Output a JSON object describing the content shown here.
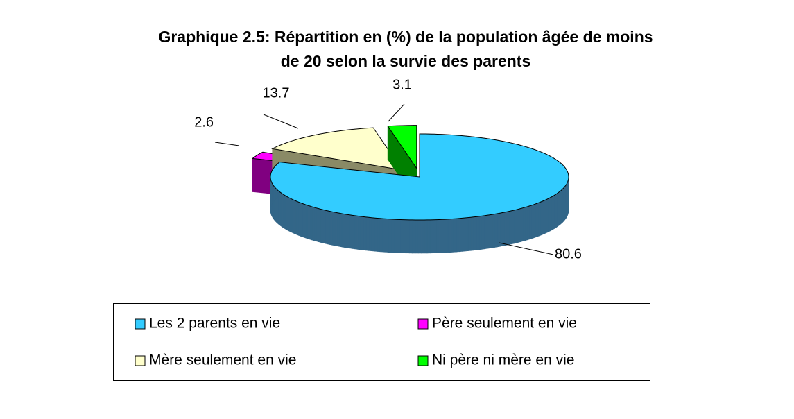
{
  "chart_data": {
    "type": "pie3d",
    "title": [
      "Graphique 2.5: Répartition en (%) de la population âgée de moins",
      "de 20 selon la survie des parents"
    ],
    "categories": [
      "Les 2 parents en vie",
      "Père seulement en vie",
      "Mère seulement en vie",
      "Ni père ni mère en vie"
    ],
    "values": [
      80.6,
      2.6,
      13.7,
      3.1
    ],
    "colors": [
      "#33ccff",
      "#ff00ff",
      "#ffffcc",
      "#00ff00"
    ],
    "side_colors": [
      "#336688",
      "#800080",
      "#8a8a66",
      "#008000"
    ],
    "legend": "bottom"
  }
}
